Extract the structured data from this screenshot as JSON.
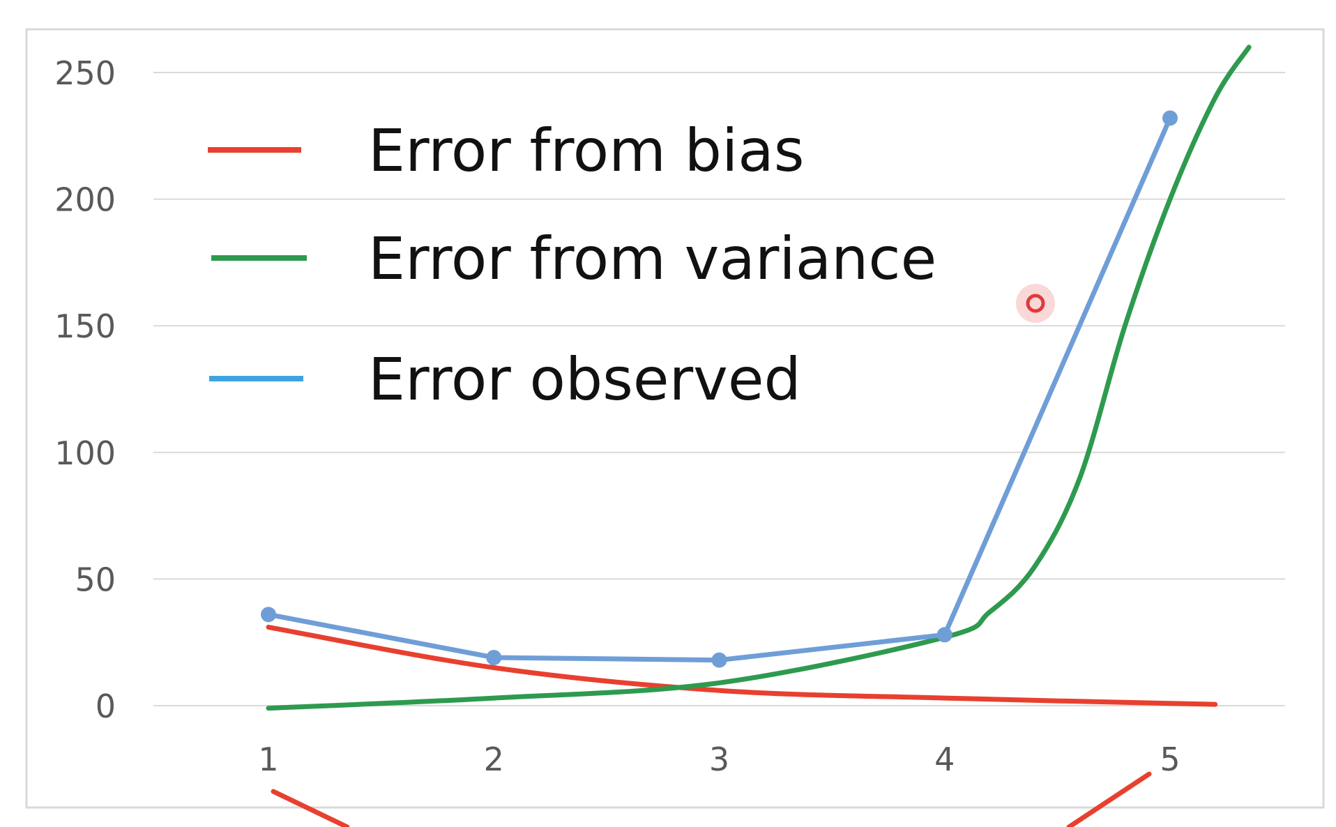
{
  "chart_data": {
    "type": "line",
    "title": "",
    "xlabel": "",
    "ylabel": "",
    "categories": [
      "1",
      "2",
      "3",
      "4",
      "5"
    ],
    "x": [
      1,
      2,
      3,
      4,
      5
    ],
    "ylim": [
      0,
      250
    ],
    "yticks": [
      "0",
      "50",
      "100",
      "150",
      "200",
      "250"
    ],
    "grid": true,
    "legend_position": "top-left",
    "series": [
      {
        "name": "Error from bias",
        "color": "#e8402f",
        "smooth": true,
        "markers": false,
        "x": [
          1,
          2,
          3,
          4,
          5.2
        ],
        "values": [
          31,
          15,
          6,
          3,
          0.5
        ]
      },
      {
        "name": "Error from variance",
        "color": "#2e9a4f",
        "smooth": true,
        "markers": false,
        "x": [
          1,
          2,
          3,
          4,
          4.2,
          4.4,
          4.6,
          4.8,
          5,
          5.2,
          5.35
        ],
        "values": [
          -1,
          3,
          9,
          27,
          37,
          55,
          90,
          150,
          200,
          240,
          260
        ]
      },
      {
        "name": "Error observed",
        "color": "#6f9ed7",
        "smooth": false,
        "markers": true,
        "x": [
          1,
          2,
          3,
          4,
          5
        ],
        "values": [
          36,
          19,
          18,
          28,
          232
        ]
      }
    ],
    "legend_swatch_colors": [
      "#e8402f",
      "#2e9a4f",
      "#3fa3e0"
    ]
  }
}
